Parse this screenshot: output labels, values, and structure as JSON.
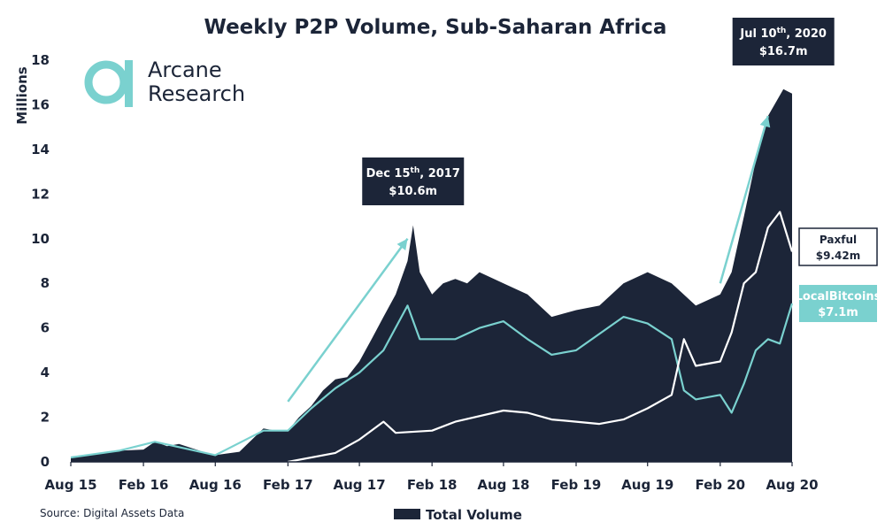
{
  "chart_data": {
    "type": "area",
    "title": "Weekly P2P Volume, Sub-Saharan Africa",
    "ylabel": "Millions",
    "xlabel": "",
    "ylim": [
      0,
      18
    ],
    "yticks": [
      "0",
      "2",
      "4",
      "6",
      "8",
      "10",
      "12",
      "14",
      "16",
      "18"
    ],
    "xticks": [
      "Aug 15",
      "Feb 16",
      "Aug 16",
      "Feb 17",
      "Aug 17",
      "Feb 18",
      "Aug 18",
      "Feb 19",
      "Aug 19",
      "Feb 20",
      "Aug 20"
    ],
    "grid": false,
    "legend_position": "bottom",
    "series": [
      {
        "name": "Total Volume",
        "kind": "area",
        "color": "#1c2538",
        "points": [
          [
            "Aug 15",
            0.2
          ],
          [
            "Oct 15",
            0.35
          ],
          [
            "Dec 15",
            0.5
          ],
          [
            "Feb 16",
            0.55
          ],
          [
            "Mar 16",
            0.9
          ],
          [
            "Apr 16",
            0.7
          ],
          [
            "May 16",
            0.8
          ],
          [
            "Jul 16",
            0.45
          ],
          [
            "Aug 16",
            0.3
          ],
          [
            "Oct 16",
            0.45
          ],
          [
            "Dec 16",
            1.5
          ],
          [
            "Jan 17",
            1.4
          ],
          [
            "Feb 17",
            1.4
          ],
          [
            "Mar 17",
            2.0
          ],
          [
            "Apr 17",
            2.5
          ],
          [
            "May 17",
            3.2
          ],
          [
            "Jun 17",
            3.7
          ],
          [
            "Jul 17",
            3.8
          ],
          [
            "Aug 17",
            4.5
          ],
          [
            "Sep 17",
            5.5
          ],
          [
            "Oct 17",
            6.5
          ],
          [
            "Nov 17",
            7.5
          ],
          [
            "Dec 17",
            9.0
          ],
          [
            "Dec 15, 2017",
            10.6
          ],
          [
            "Jan 18",
            8.5
          ],
          [
            "Feb 18",
            7.5
          ],
          [
            "Mar 18",
            8.0
          ],
          [
            "Apr 18",
            8.2
          ],
          [
            "May 18",
            8.0
          ],
          [
            "Jun 18",
            8.5
          ],
          [
            "Aug 18",
            8.0
          ],
          [
            "Oct 18",
            7.5
          ],
          [
            "Dec 18",
            6.5
          ],
          [
            "Feb 19",
            6.8
          ],
          [
            "Apr 19",
            7.0
          ],
          [
            "Jun 19",
            8.0
          ],
          [
            "Aug 19",
            8.5
          ],
          [
            "Oct 19",
            8.0
          ],
          [
            "Dec 19",
            7.0
          ],
          [
            "Feb 20",
            7.5
          ],
          [
            "Mar 20",
            8.5
          ],
          [
            "Apr 20",
            11.0
          ],
          [
            "May 20",
            13.5
          ],
          [
            "Jun 20",
            15.5
          ],
          [
            "Jul 10, 2020",
            16.7
          ],
          [
            "Aug 20",
            16.5
          ]
        ]
      },
      {
        "name": "LocalBitcoins",
        "kind": "line",
        "color": "#7ad1cf",
        "points": [
          [
            "Aug 15",
            0.2
          ],
          [
            "Dec 15",
            0.5
          ],
          [
            "Mar 16",
            0.9
          ],
          [
            "Aug 16",
            0.3
          ],
          [
            "Dec 16",
            1.4
          ],
          [
            "Feb 17",
            1.4
          ],
          [
            "Apr 17",
            2.4
          ],
          [
            "Jun 17",
            3.3
          ],
          [
            "Aug 17",
            4.0
          ],
          [
            "Oct 17",
            5.0
          ],
          [
            "Dec 17",
            7.0
          ],
          [
            "Jan 18",
            5.5
          ],
          [
            "Apr 18",
            5.5
          ],
          [
            "Jun 18",
            6.0
          ],
          [
            "Aug 18",
            6.3
          ],
          [
            "Oct 18",
            5.5
          ],
          [
            "Dec 18",
            4.8
          ],
          [
            "Feb 19",
            5.0
          ],
          [
            "Jun 19",
            6.5
          ],
          [
            "Aug 19",
            6.2
          ],
          [
            "Oct 19",
            5.5
          ],
          [
            "Nov 19",
            3.2
          ],
          [
            "Dec 19",
            2.8
          ],
          [
            "Feb 20",
            3.0
          ],
          [
            "Mar 20",
            2.2
          ],
          [
            "Apr 20",
            3.5
          ],
          [
            "May 20",
            5.0
          ],
          [
            "Jun 20",
            5.5
          ],
          [
            "Jul 20",
            5.3
          ],
          [
            "Aug 20",
            7.1
          ]
        ],
        "label": "LocalBitcoins",
        "value_label": "$7.1m"
      },
      {
        "name": "Paxful",
        "kind": "line",
        "color": "#ffffff",
        "points": [
          [
            "Feb 17",
            0.0
          ],
          [
            "Jun 17",
            0.4
          ],
          [
            "Aug 17",
            1.0
          ],
          [
            "Oct 17",
            1.8
          ],
          [
            "Nov 17",
            1.3
          ],
          [
            "Feb 18",
            1.4
          ],
          [
            "Apr 18",
            1.8
          ],
          [
            "Aug 18",
            2.3
          ],
          [
            "Oct 18",
            2.2
          ],
          [
            "Dec 18",
            1.9
          ],
          [
            "Feb 19",
            1.8
          ],
          [
            "Apr 19",
            1.7
          ],
          [
            "Jun 19",
            1.9
          ],
          [
            "Aug 19",
            2.4
          ],
          [
            "Oct 19",
            3.0
          ],
          [
            "Nov 19",
            5.5
          ],
          [
            "Dec 19",
            4.3
          ],
          [
            "Feb 20",
            4.5
          ],
          [
            "Mar 20",
            5.8
          ],
          [
            "Apr 20",
            8.0
          ],
          [
            "May 20",
            8.5
          ],
          [
            "Jun 20",
            10.5
          ],
          [
            "Jul 20",
            11.2
          ],
          [
            "Aug 20",
            9.42
          ]
        ],
        "label": "Paxful",
        "value_label": "$9.42m"
      }
    ],
    "annotations": [
      {
        "date": "Dec 15, 2017",
        "value": 10.6,
        "line1_pre": "Dec 15",
        "line1_sup": "th",
        "line1_post": ", 2017",
        "line2": "$10.6m"
      },
      {
        "date": "Jul 10, 2020",
        "value": 16.7,
        "line1_pre": "Jul 10",
        "line1_sup": "th",
        "line1_post": ", 2020",
        "line2": "$16.7m"
      }
    ],
    "trend_arrows": [
      {
        "from_date": "Feb 17",
        "from_value": 2.7,
        "to_date": "Dec 17",
        "to_value": 10.0
      },
      {
        "from_date": "Feb 20",
        "from_value": 8.0,
        "to_date": "Jun 20",
        "to_value": 15.5
      }
    ]
  },
  "brand": {
    "line1": "Arcane",
    "line2": "Research",
    "accent": "#7ad1cf"
  },
  "source": "Source: Digital Assets Data",
  "legend_label": "Total Volume",
  "colors": {
    "navy": "#1c2538",
    "teal": "#7ad1cf",
    "white": "#ffffff"
  }
}
